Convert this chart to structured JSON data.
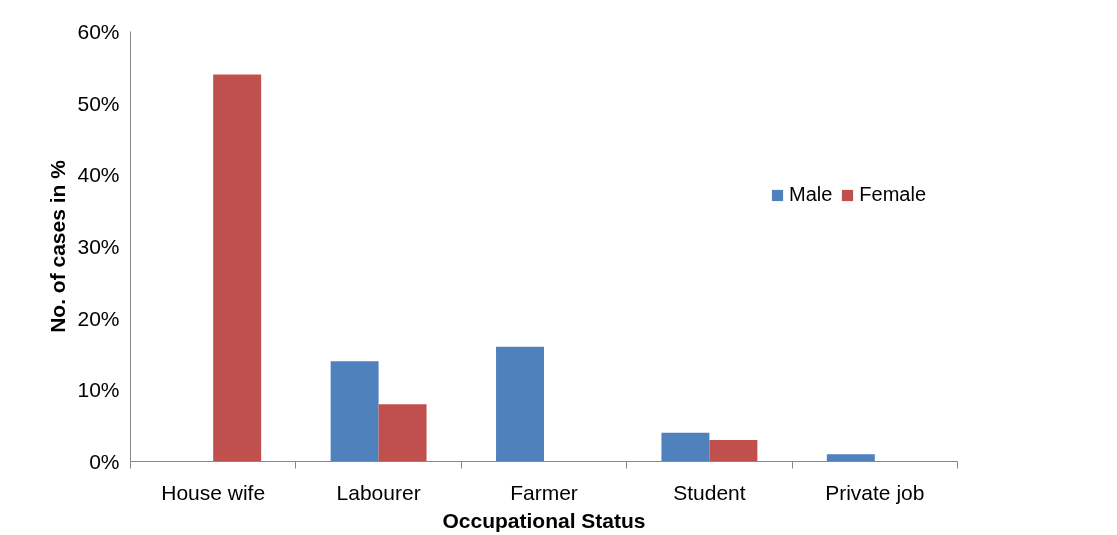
{
  "chart_data": {
    "type": "bar",
    "xlabel": "Occupational Status",
    "ylabel": "No. of cases in %",
    "categories": [
      "House wife",
      "Labourer",
      "Farmer",
      "Student",
      "Private job"
    ],
    "series": [
      {
        "name": "Male",
        "color": "#4f81bd",
        "values": [
          0,
          14,
          16,
          4,
          1
        ]
      },
      {
        "name": "Female",
        "color": "#c0504d",
        "values": [
          54,
          8,
          0,
          3,
          0
        ]
      }
    ],
    "ylim": [
      0,
      60
    ],
    "yticks": [
      {
        "value": 0,
        "label": "0%"
      },
      {
        "value": 10,
        "label": "10%"
      },
      {
        "value": 20,
        "label": "20%"
      },
      {
        "value": 30,
        "label": "30%"
      },
      {
        "value": 40,
        "label": "40%"
      },
      {
        "value": 50,
        "label": "50%"
      },
      {
        "value": 60,
        "label": "60%"
      }
    ],
    "grid": false,
    "legend": "right"
  }
}
